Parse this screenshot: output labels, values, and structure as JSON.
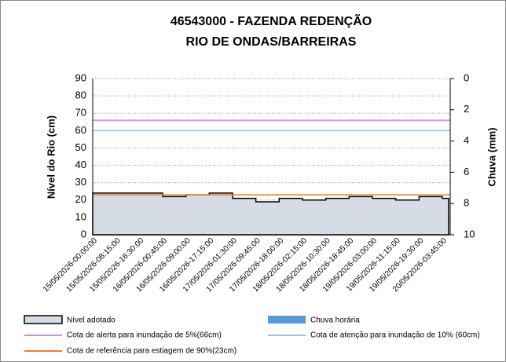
{
  "chart_data": {
    "type": "area",
    "title": "46543000 - FAZENDA REDENÇÃO",
    "subtitle": "RIO DE ONDAS/BARREIRAS",
    "y_label": "Nível do Rio (cm)",
    "y2_label": "Chuva (mm)",
    "categories": [
      "15/05/2026-00:00:00",
      "15/05/2026-08:15:00",
      "15/05/2026-16:30:00",
      "16/05/2026-00:45:00",
      "16/05/2026-09:00:00",
      "16/05/2026-17:15:00",
      "17/05/2026-01:30:00",
      "17/05/2026-09:45:00",
      "17/05/2026-18:00:00",
      "18/05/2026-02:15:00",
      "18/05/2026-10:30:00",
      "18/05/2026-18:45:00",
      "19/05/2026-03:00:00",
      "19/05/2026-11:15:00",
      "19/05/2026-19:30:00",
      "20/05/2026-03:45:00"
    ],
    "series": [
      {
        "name": "Nível adotado",
        "color": "#d6dce5",
        "values": [
          24,
          24,
          24,
          22,
          23,
          24,
          21,
          19,
          21,
          20,
          21,
          22,
          21,
          20,
          22,
          21
        ]
      },
      {
        "name": "Chuva horária",
        "color": "#5b9bd5",
        "axis": "y2",
        "values": [
          0,
          0,
          0,
          0,
          0,
          0,
          0,
          0,
          0,
          0,
          0,
          0,
          0,
          0,
          0,
          0
        ]
      }
    ],
    "reference_lines": [
      {
        "name": "Cota de alerta para inundação de 5%(66cm)",
        "value": 66,
        "color": "#e47fe0"
      },
      {
        "name": "Cota de atenção para inundação de 10% (60cm)",
        "value": 60,
        "color": "#9dc3e6"
      },
      {
        "name": "Cota de referência para estiagem de 90%(23cm)",
        "value": 23,
        "color": "#ed7d31"
      }
    ],
    "ylim": [
      0,
      90
    ],
    "yticks": [
      0,
      10,
      20,
      30,
      40,
      50,
      60,
      70,
      80,
      90
    ],
    "y2lim": [
      10,
      0
    ],
    "y2ticks": [
      0,
      2,
      4,
      6,
      8,
      10
    ],
    "grid": true
  }
}
